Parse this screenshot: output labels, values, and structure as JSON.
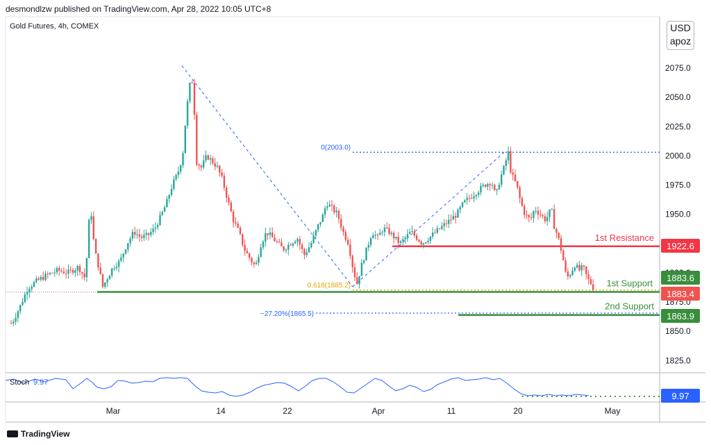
{
  "header": "desmondlzw published on TradingView.com, Apr 28, 2022 10:05 UTC+8",
  "title": "Gold Futures, 4h, COMEX",
  "currency": "USD",
  "unit_label": "apoz",
  "brand": "TradingView",
  "colors": {
    "up": "#26a69a",
    "down": "#ef5350",
    "support": "#388e3c",
    "resistance": "#f23645",
    "fib": "#2962ff",
    "fib_mid": "#e0a800",
    "stoch": "#2962ff",
    "stoch_level": "#43a047",
    "axis_text": "#131722"
  },
  "chart_data": {
    "type": "candlestick",
    "symbol": "Gold Futures",
    "interval": "4h",
    "exchange": "COMEX",
    "ylim": [
      1808,
      2095
    ],
    "y_ticks": [
      "2075.0",
      "2050.0",
      "2025.0",
      "2000.0",
      "1975.0",
      "1950.0",
      "1900.0",
      "1875.0",
      "1850.0",
      "1825.0"
    ],
    "x_ticks": [
      "Mar",
      "14",
      "22",
      "Apr",
      "11",
      "20",
      "May"
    ],
    "price_path": [
      [
        0,
        1852
      ],
      [
        10,
        1858
      ],
      [
        20,
        1870
      ],
      [
        32,
        1887
      ],
      [
        45,
        1893
      ],
      [
        60,
        1898
      ],
      [
        75,
        1902
      ],
      [
        90,
        1900
      ],
      [
        105,
        1905
      ],
      [
        115,
        1895
      ],
      [
        122,
        1960
      ],
      [
        128,
        1920
      ],
      [
        134,
        1905
      ],
      [
        140,
        1888
      ],
      [
        146,
        1895
      ],
      [
        155,
        1905
      ],
      [
        165,
        1910
      ],
      [
        175,
        1925
      ],
      [
        185,
        1935
      ],
      [
        195,
        1930
      ],
      [
        205,
        1932
      ],
      [
        215,
        1938
      ],
      [
        225,
        1950
      ],
      [
        232,
        1960
      ],
      [
        240,
        1975
      ],
      [
        248,
        1985
      ],
      [
        255,
        2000
      ],
      [
        260,
        2035
      ],
      [
        265,
        2060
      ],
      [
        270,
        2065
      ],
      [
        275,
        1995
      ],
      [
        282,
        1990
      ],
      [
        290,
        2000
      ],
      [
        298,
        1995
      ],
      [
        305,
        1990
      ],
      [
        312,
        1980
      ],
      [
        320,
        1962
      ],
      [
        328,
        1945
      ],
      [
        336,
        1935
      ],
      [
        344,
        1920
      ],
      [
        352,
        1912
      ],
      [
        360,
        1905
      ],
      [
        368,
        1925
      ],
      [
        376,
        1935
      ],
      [
        384,
        1930
      ],
      [
        392,
        1925
      ],
      [
        400,
        1920
      ],
      [
        410,
        1925
      ],
      [
        420,
        1930
      ],
      [
        430,
        1915
      ],
      [
        440,
        1925
      ],
      [
        450,
        1940
      ],
      [
        458,
        1950
      ],
      [
        462,
        1960
      ],
      [
        470,
        1955
      ],
      [
        478,
        1950
      ],
      [
        486,
        1935
      ],
      [
        494,
        1925
      ],
      [
        500,
        1905
      ],
      [
        506,
        1890
      ],
      [
        512,
        1905
      ],
      [
        520,
        1920
      ],
      [
        528,
        1935
      ],
      [
        536,
        1930
      ],
      [
        544,
        1938
      ],
      [
        552,
        1935
      ],
      [
        560,
        1930
      ],
      [
        568,
        1925
      ],
      [
        576,
        1930
      ],
      [
        584,
        1935
      ],
      [
        592,
        1930
      ],
      [
        600,
        1925
      ],
      [
        610,
        1930
      ],
      [
        620,
        1935
      ],
      [
        630,
        1940
      ],
      [
        640,
        1945
      ],
      [
        650,
        1950
      ],
      [
        660,
        1960
      ],
      [
        670,
        1965
      ],
      [
        680,
        1970
      ],
      [
        690,
        1975
      ],
      [
        700,
        1978
      ],
      [
        706,
        1965
      ],
      [
        712,
        1980
      ],
      [
        718,
        1990
      ],
      [
        724,
        2003
      ],
      [
        728,
        1985
      ],
      [
        736,
        1975
      ],
      [
        742,
        1960
      ],
      [
        748,
        1950
      ],
      [
        756,
        1945
      ],
      [
        762,
        1955
      ],
      [
        770,
        1950
      ],
      [
        778,
        1945
      ],
      [
        786,
        1955
      ],
      [
        790,
        1940
      ],
      [
        796,
        1930
      ],
      [
        802,
        1915
      ],
      [
        808,
        1895
      ],
      [
        814,
        1900
      ],
      [
        820,
        1907
      ],
      [
        826,
        1902
      ],
      [
        832,
        1905
      ],
      [
        838,
        1895
      ],
      [
        844,
        1890
      ],
      [
        849,
        1884
      ]
    ],
    "fib_levels": [
      {
        "label": "0(2003.0)",
        "value": 2003.0
      },
      {
        "label": "0.618(1885.2)",
        "value": 1885.2
      },
      {
        "label": "−27.20%(1865.5)",
        "value": 1865.5
      }
    ],
    "levels": [
      {
        "name": "1st Resistance",
        "value": 1922.6,
        "label": "1922.6"
      },
      {
        "name": "1st Support",
        "value": 1883.6,
        "label": "1883.6"
      },
      {
        "name": "2nd Support",
        "value": 1863.9,
        "label": "1863.9"
      }
    ],
    "current_price": {
      "value": 1883.4,
      "label": "1883.4"
    },
    "partial_price_label": "1900.0",
    "stoch": {
      "label": "Stoch",
      "value": 9.97,
      "value_label": "9.97",
      "display": "9.97",
      "path": [
        [
          8,
          548
        ],
        [
          20,
          546
        ],
        [
          35,
          552
        ],
        [
          50,
          546
        ],
        [
          65,
          550
        ],
        [
          80,
          545
        ],
        [
          95,
          547
        ],
        [
          105,
          560
        ],
        [
          115,
          553
        ],
        [
          125,
          545
        ],
        [
          132,
          550
        ],
        [
          140,
          558
        ],
        [
          150,
          560
        ],
        [
          160,
          557
        ],
        [
          170,
          548
        ],
        [
          180,
          549
        ],
        [
          190,
          552
        ],
        [
          200,
          551
        ],
        [
          210,
          549
        ],
        [
          220,
          550
        ],
        [
          230,
          545
        ],
        [
          240,
          544
        ],
        [
          250,
          545
        ],
        [
          260,
          544
        ],
        [
          270,
          545
        ],
        [
          280,
          555
        ],
        [
          290,
          563
        ],
        [
          300,
          565
        ],
        [
          310,
          566
        ],
        [
          320,
          564
        ],
        [
          330,
          569
        ],
        [
          340,
          571
        ],
        [
          350,
          569
        ],
        [
          360,
          565
        ],
        [
          370,
          559
        ],
        [
          380,
          555
        ],
        [
          390,
          553
        ],
        [
          400,
          551
        ],
        [
          410,
          552
        ],
        [
          420,
          557
        ],
        [
          430,
          563
        ],
        [
          440,
          556
        ],
        [
          450,
          548
        ],
        [
          460,
          545
        ],
        [
          470,
          545
        ],
        [
          480,
          550
        ],
        [
          490,
          557
        ],
        [
          500,
          565
        ],
        [
          510,
          566
        ],
        [
          520,
          559
        ],
        [
          530,
          552
        ],
        [
          540,
          545
        ],
        [
          550,
          548
        ],
        [
          560,
          556
        ],
        [
          570,
          563
        ],
        [
          580,
          560
        ],
        [
          590,
          555
        ],
        [
          600,
          558
        ],
        [
          610,
          564
        ],
        [
          620,
          561
        ],
        [
          630,
          554
        ],
        [
          640,
          550
        ],
        [
          650,
          546
        ],
        [
          660,
          544
        ],
        [
          670,
          548
        ],
        [
          680,
          547
        ],
        [
          690,
          546
        ],
        [
          700,
          544
        ],
        [
          710,
          547
        ],
        [
          720,
          545
        ],
        [
          730,
          552
        ],
        [
          740,
          560
        ],
        [
          750,
          567
        ],
        [
          760,
          570
        ],
        [
          770,
          569
        ],
        [
          780,
          570
        ],
        [
          790,
          568
        ],
        [
          800,
          570
        ],
        [
          810,
          569
        ],
        [
          820,
          570
        ],
        [
          830,
          568
        ],
        [
          840,
          569
        ],
        [
          848,
          570
        ]
      ]
    }
  }
}
